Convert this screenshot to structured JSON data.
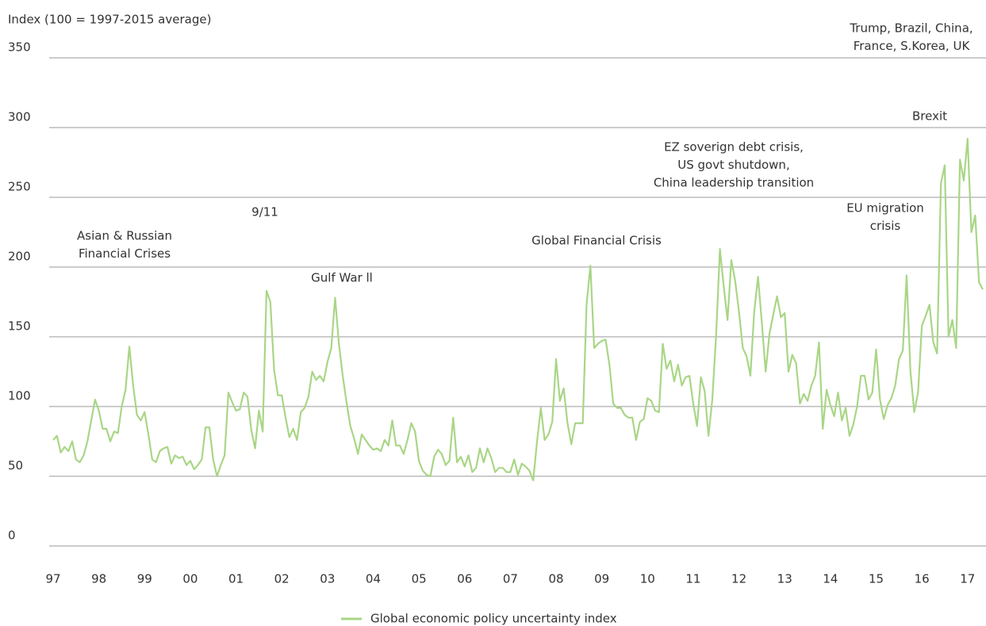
{
  "chart_data": {
    "type": "line",
    "y_axis_label": "Index (100 = 1997-2015 average)",
    "ylim": [
      0,
      350
    ],
    "yticks": [
      0,
      50,
      100,
      150,
      200,
      250,
      300,
      350
    ],
    "grid": true,
    "legend": "bottom",
    "categories": [
      "97",
      null,
      null,
      null,
      null,
      null,
      null,
      null,
      null,
      null,
      null,
      null,
      "98",
      null,
      null,
      null,
      null,
      null,
      null,
      null,
      null,
      null,
      null,
      null,
      "99",
      null,
      null,
      null,
      null,
      null,
      null,
      null,
      null,
      null,
      null,
      null,
      "00",
      null,
      null,
      null,
      null,
      null,
      null,
      null,
      null,
      null,
      null,
      null,
      "01",
      null,
      null,
      null,
      null,
      null,
      null,
      null,
      null,
      null,
      null,
      null,
      "02",
      null,
      null,
      null,
      null,
      null,
      null,
      null,
      null,
      null,
      null,
      null,
      "03",
      null,
      null,
      null,
      null,
      null,
      null,
      null,
      null,
      null,
      null,
      null,
      "04",
      null,
      null,
      null,
      null,
      null,
      null,
      null,
      null,
      null,
      null,
      null,
      "05",
      null,
      null,
      null,
      null,
      null,
      null,
      null,
      null,
      null,
      null,
      null,
      "06",
      null,
      null,
      null,
      null,
      null,
      null,
      null,
      null,
      null,
      null,
      null,
      "07",
      null,
      null,
      null,
      null,
      null,
      null,
      null,
      null,
      null,
      null,
      null,
      "08",
      null,
      null,
      null,
      null,
      null,
      null,
      null,
      null,
      null,
      null,
      null,
      "09",
      null,
      null,
      null,
      null,
      null,
      null,
      null,
      null,
      null,
      null,
      null,
      "10",
      null,
      null,
      null,
      null,
      null,
      null,
      null,
      null,
      null,
      null,
      null,
      "11",
      null,
      null,
      null,
      null,
      null,
      null,
      null,
      null,
      null,
      null,
      null,
      "12",
      null,
      null,
      null,
      null,
      null,
      null,
      null,
      null,
      null,
      null,
      null,
      "13",
      null,
      null,
      null,
      null,
      null,
      null,
      null,
      null,
      null,
      null,
      null,
      "14",
      null,
      null,
      null,
      null,
      null,
      null,
      null,
      null,
      null,
      null,
      null,
      "15",
      null,
      null,
      null,
      null,
      null,
      null,
      null,
      null,
      null,
      null,
      null,
      "16",
      null,
      null,
      null,
      null,
      null,
      null,
      null,
      null,
      null,
      null,
      null,
      "17",
      null,
      null,
      null,
      null
    ],
    "series": [
      {
        "name": "Global economic policy uncertainty index",
        "color": "#a9d686",
        "values": [
          76,
          79,
          67,
          71,
          68,
          75,
          62,
          60,
          65,
          75,
          90,
          105,
          97,
          84,
          84,
          75,
          82,
          81,
          100,
          112,
          143,
          115,
          94,
          90,
          96,
          80,
          62,
          60,
          68,
          70,
          71,
          59,
          65,
          63,
          64,
          58,
          61,
          55,
          58,
          62,
          85,
          85,
          62,
          50,
          58,
          65,
          110,
          103,
          97,
          98,
          110,
          107,
          83,
          70,
          97,
          82,
          183,
          175,
          126,
          108,
          108,
          92,
          78,
          84,
          76,
          96,
          99,
          107,
          125,
          119,
          122,
          118,
          132,
          142,
          178,
          145,
          122,
          103,
          86,
          77,
          66,
          80,
          76,
          72,
          69,
          70,
          68,
          76,
          72,
          90,
          72,
          72,
          66,
          76,
          88,
          82,
          61,
          54,
          51,
          50,
          64,
          69,
          66,
          58,
          61,
          92,
          60,
          64,
          57,
          65,
          53,
          56,
          70,
          60,
          70,
          63,
          53,
          56,
          56,
          53,
          53,
          62,
          51,
          59,
          57,
          54,
          47,
          75,
          99,
          76,
          80,
          89,
          134,
          104,
          113,
          88,
          73,
          88,
          88,
          88,
          173,
          201,
          142,
          145,
          147,
          148,
          130,
          102,
          99,
          99,
          94,
          92,
          92,
          76,
          89,
          91,
          106,
          104,
          97,
          96,
          145,
          127,
          133,
          118,
          130,
          115,
          121,
          122,
          102,
          86,
          121,
          111,
          79,
          105,
          151,
          213,
          186,
          162,
          205,
          190,
          168,
          142,
          136,
          122,
          168,
          193,
          160,
          125,
          152,
          166,
          179,
          164,
          167,
          125,
          137,
          131,
          102,
          109,
          104,
          115,
          122,
          146,
          84,
          112,
          101,
          93,
          110,
          90,
          99,
          79,
          87,
          100,
          122,
          122,
          105,
          110,
          141,
          105,
          91,
          101,
          106,
          115,
          134,
          140,
          194,
          125,
          96,
          110,
          158,
          165,
          173,
          146,
          138,
          260,
          273,
          150,
          162,
          142,
          277,
          262,
          292,
          225,
          237,
          189,
          184
        ]
      }
    ],
    "annotations": [
      [
        "Asian & Russian",
        "Financial Crises"
      ],
      [
        "9/11"
      ],
      [
        "Gulf War ll"
      ],
      [
        "Global Financial Crisis"
      ],
      [
        "EZ soverign debt crisis,",
        "US govt shutdown,",
        "China leadership transition"
      ],
      [
        "EU migration",
        "crisis"
      ],
      [
        "Brexit"
      ],
      [
        "Trump, Brazil, China,",
        "France, S.Korea, UK"
      ]
    ]
  }
}
